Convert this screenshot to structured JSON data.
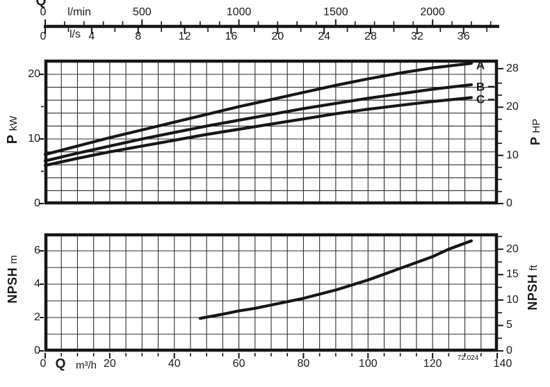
{
  "chart_code": "72.024",
  "top_axis": {
    "q_symbol": "Q",
    "lmin_unit": "l/min",
    "lmin_ticks": [
      0,
      500,
      1000,
      1500,
      2000
    ],
    "lmin_minor_step": 100,
    "lmin_max": 2300,
    "ls_unit": "l/s",
    "ls_ticks": [
      0,
      4,
      8,
      12,
      16,
      20,
      24,
      28,
      32,
      36
    ],
    "ls_minor_step": 2,
    "ls_max": 38
  },
  "bottom_axis": {
    "q_symbol": "Q",
    "unit": "m³/h",
    "ticks": [
      0,
      20,
      40,
      60,
      80,
      100,
      120,
      140
    ],
    "minor_step": 5
  },
  "chart_data": [
    {
      "type": "line",
      "name": "power-curves",
      "xlabel": "Q m³/h",
      "xlim": [
        0,
        140
      ],
      "ylabel": "P kW",
      "ylabel_symbol": "P",
      "ylabel_unit": "kW",
      "ylim": [
        0,
        22.15
      ],
      "y_ticks": [
        0,
        10,
        20
      ],
      "y_tick_minor_step": 5,
      "y_grid_step": 2,
      "x_grid_step": 5,
      "y2label": "P HP",
      "y2label_symbol": "P",
      "y2label_unit": "HP",
      "y2_ticks": [
        0,
        10,
        20,
        28
      ],
      "y2_minor_step": 2.5,
      "y2_max": 27.5,
      "y2_to_y_factor": 0.7457,
      "grid": true,
      "legend_position": "curve-end-labels",
      "series": [
        {
          "name": "A",
          "show_label": true,
          "leader_dash": false,
          "points": [
            [
              0,
              7.6
            ],
            [
              10,
              8.9
            ],
            [
              20,
              10.2
            ],
            [
              30,
              11.4
            ],
            [
              40,
              12.6
            ],
            [
              50,
              13.8
            ],
            [
              60,
              15.0
            ],
            [
              70,
              16.1
            ],
            [
              80,
              17.2
            ],
            [
              90,
              18.3
            ],
            [
              100,
              19.3
            ],
            [
              110,
              20.2
            ],
            [
              120,
              21.0
            ],
            [
              132,
              21.7
            ]
          ]
        },
        {
          "name": "B",
          "show_label": true,
          "leader_dash": true,
          "points": [
            [
              0,
              6.6
            ],
            [
              10,
              7.8
            ],
            [
              20,
              8.9
            ],
            [
              30,
              10.0
            ],
            [
              40,
              11.0
            ],
            [
              50,
              12.0
            ],
            [
              60,
              12.9
            ],
            [
              70,
              13.8
            ],
            [
              80,
              14.7
            ],
            [
              90,
              15.5
            ],
            [
              100,
              16.3
            ],
            [
              110,
              17.0
            ],
            [
              120,
              17.7
            ],
            [
              132,
              18.4
            ]
          ]
        },
        {
          "name": "C",
          "show_label": true,
          "leader_dash": true,
          "points": [
            [
              0,
              5.9
            ],
            [
              10,
              7.0
            ],
            [
              20,
              8.0
            ],
            [
              30,
              8.9
            ],
            [
              40,
              9.8
            ],
            [
              50,
              10.7
            ],
            [
              60,
              11.5
            ],
            [
              70,
              12.3
            ],
            [
              80,
              13.1
            ],
            [
              90,
              13.9
            ],
            [
              100,
              14.6
            ],
            [
              110,
              15.2
            ],
            [
              120,
              15.8
            ],
            [
              132,
              16.4
            ]
          ]
        }
      ]
    },
    {
      "type": "line",
      "name": "npsh-curve",
      "xlabel": "Q m³/h",
      "xlim": [
        0,
        140
      ],
      "ylabel": "NPSH m",
      "ylabel_symbol": "NPSH",
      "ylabel_unit": "m",
      "ylim": [
        0,
        7.0
      ],
      "y_ticks": [
        0,
        2,
        4,
        6
      ],
      "y_tick_minor_step": 2,
      "y_grid_step": 1,
      "x_grid_step": 5,
      "y2label": "NPSH ft",
      "y2label_symbol": "NPSH",
      "y2label_unit": "ft",
      "y2_ticks": [
        0,
        5,
        10,
        15,
        20
      ],
      "y2_minor_step": 2.5,
      "y2_max": 22.5,
      "y2_to_y_factor": 0.3048,
      "grid": true,
      "series": [
        {
          "name": "NPSH",
          "show_label": false,
          "leader_dash": false,
          "points": [
            [
              48,
              1.95
            ],
            [
              55,
              2.2
            ],
            [
              60,
              2.4
            ],
            [
              65,
              2.55
            ],
            [
              70,
              2.75
            ],
            [
              75,
              2.95
            ],
            [
              80,
              3.15
            ],
            [
              85,
              3.4
            ],
            [
              90,
              3.65
            ],
            [
              95,
              3.95
            ],
            [
              100,
              4.25
            ],
            [
              105,
              4.6
            ],
            [
              110,
              4.95
            ],
            [
              115,
              5.3
            ],
            [
              120,
              5.65
            ],
            [
              125,
              6.1
            ],
            [
              132,
              6.6
            ]
          ]
        }
      ]
    }
  ]
}
